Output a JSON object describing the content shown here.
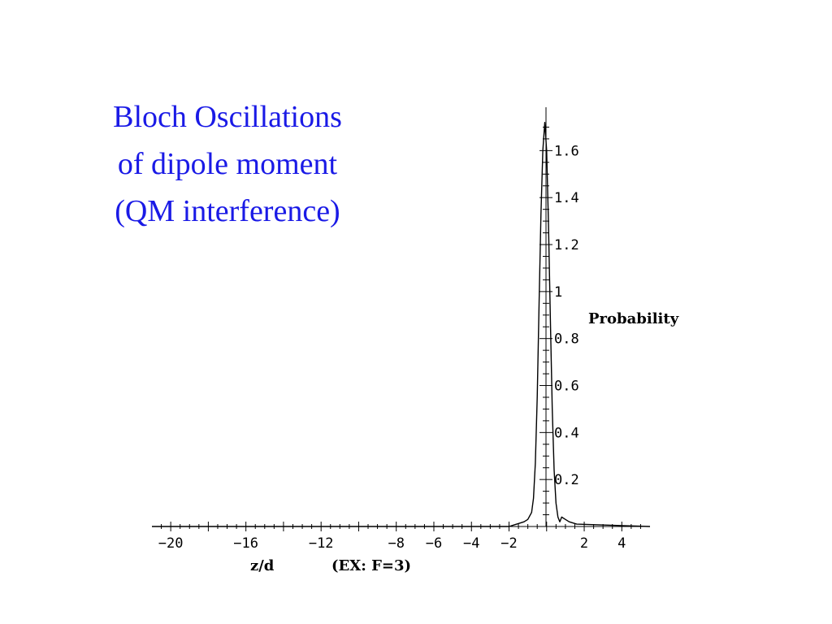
{
  "slide": {
    "title_lines": [
      "Bloch Oscillations",
      "of dipole moment",
      "(QM interference)"
    ],
    "title_color": "#1a1ae6"
  },
  "chart_data": {
    "type": "line",
    "xlabel": "z/d",
    "x_annotation": "(EX: F=3)",
    "ylabel": "Probability",
    "xlim": [
      -21,
      5.5
    ],
    "ylim": [
      0,
      1.75
    ],
    "x_ticks": [
      -20,
      -16,
      -12,
      -8,
      -6,
      -4,
      -2,
      2,
      4
    ],
    "x_tick_labels": [
      "−20",
      "−16",
      "−12",
      "−8",
      "−6",
      "−4",
      "−2",
      "2",
      "4"
    ],
    "y_ticks": [
      0.2,
      0.4,
      0.6,
      0.8,
      1,
      1.2,
      1.4,
      1.6
    ],
    "y_tick_labels": [
      "0.2",
      "0.4",
      "0.6",
      "0.8",
      "1",
      "1.2",
      "1.4",
      "1.6"
    ],
    "series": [
      {
        "line_color": "#000000",
        "x": [
          -21,
          -2,
          -1.2,
          -1.0,
          -0.8,
          -0.7,
          -0.6,
          -0.5,
          -0.4,
          -0.3,
          -0.2,
          -0.1,
          0.0,
          0.1,
          0.2,
          0.3,
          0.4,
          0.5,
          0.6,
          0.7,
          0.8,
          1.0,
          1.2,
          1.6,
          5.5
        ],
        "y": [
          0,
          0,
          0.02,
          0.03,
          0.06,
          0.12,
          0.27,
          0.55,
          0.95,
          1.33,
          1.6,
          1.72,
          1.6,
          1.28,
          0.88,
          0.5,
          0.24,
          0.1,
          0.04,
          0.02,
          0.04,
          0.03,
          0.02,
          0.01,
          0
        ]
      }
    ]
  }
}
